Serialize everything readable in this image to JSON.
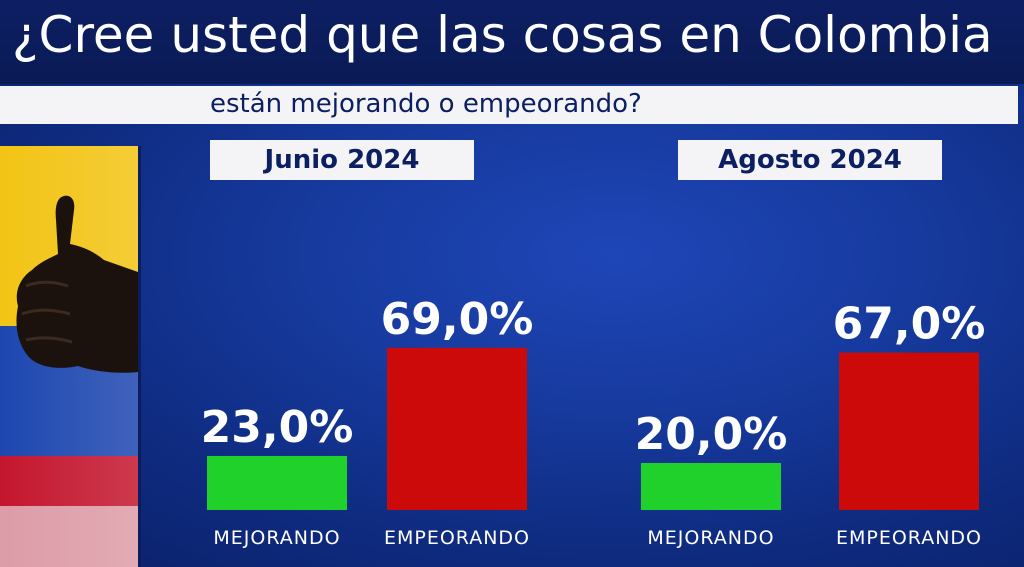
{
  "header": {
    "title": "¿Cree usted que las cosas en Colombia",
    "subtitle": "están mejorando o empeorando?"
  },
  "photo": {
    "icon": "thumbs-up-icon",
    "flag_colors": [
      "#f4c518",
      "#1d3f9e",
      "#c8102e"
    ]
  },
  "colors": {
    "mejorando": "#1fd12a",
    "empeorando": "#cc0a0a"
  },
  "chart_data": [
    {
      "type": "bar",
      "title": "Junio 2024",
      "categories": [
        "MEJORANDO",
        "EMPEORANDO"
      ],
      "values": [
        23.0,
        69.0
      ],
      "value_labels": [
        "23,0%",
        "69,0%"
      ],
      "ylim": [
        0,
        100
      ]
    },
    {
      "type": "bar",
      "title": "Agosto 2024",
      "categories": [
        "MEJORANDO",
        "EMPEORANDO"
      ],
      "values": [
        20.0,
        67.0
      ],
      "value_labels": [
        "20,0%",
        "67,0%"
      ],
      "ylim": [
        0,
        100
      ]
    }
  ]
}
